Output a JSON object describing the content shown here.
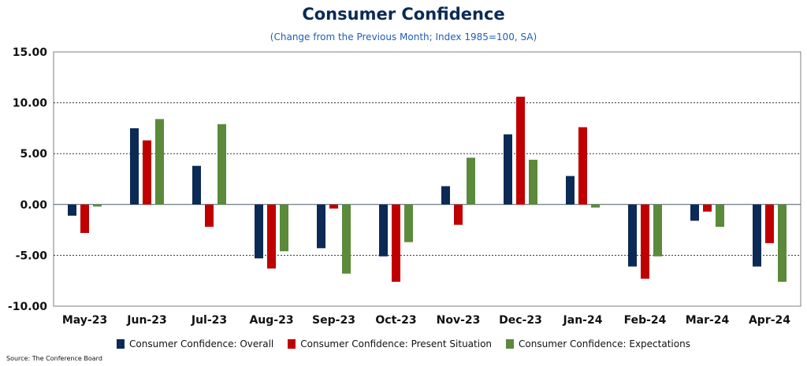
{
  "chart_data": {
    "type": "bar",
    "title": "Consumer Confidence",
    "subtitle": "(Change from the Previous Month; Index 1985=100, SA)",
    "categories": [
      "May-23",
      "Jun-23",
      "Jul-23",
      "Aug-23",
      "Sep-23",
      "Oct-23",
      "Nov-23",
      "Dec-23",
      "Jan-24",
      "Feb-24",
      "Mar-24",
      "Apr-24"
    ],
    "series": [
      {
        "name": "Consumer Confidence: Overall",
        "color": "#0b2a55",
        "values": [
          -1.1,
          7.5,
          3.8,
          -5.3,
          -4.3,
          -5.1,
          1.8,
          6.9,
          2.8,
          -6.1,
          -1.6,
          -6.1
        ]
      },
      {
        "name": "Consumer Confidence: Present Situation",
        "color": "#c00000",
        "values": [
          -2.8,
          6.3,
          -2.2,
          -6.3,
          -0.4,
          -7.6,
          -2.0,
          10.6,
          7.6,
          -7.3,
          -0.7,
          -3.8
        ]
      },
      {
        "name": "Consumer Confidence: Expectations",
        "color": "#5a8a3a",
        "values": [
          -0.2,
          8.4,
          7.9,
          -4.6,
          -6.8,
          -3.7,
          4.6,
          4.4,
          -0.3,
          -5.1,
          -2.2,
          -7.6
        ]
      }
    ],
    "ylim": [
      -10,
      15
    ],
    "yticks": [
      "15.00",
      "10.00",
      "5.00",
      "0.00",
      "-5.00",
      "-10.00"
    ],
    "ytick_values": [
      15,
      10,
      5,
      0,
      -5,
      -10
    ],
    "grid": true,
    "legend_position": "bottom",
    "source": "Source: The Conference Board"
  }
}
